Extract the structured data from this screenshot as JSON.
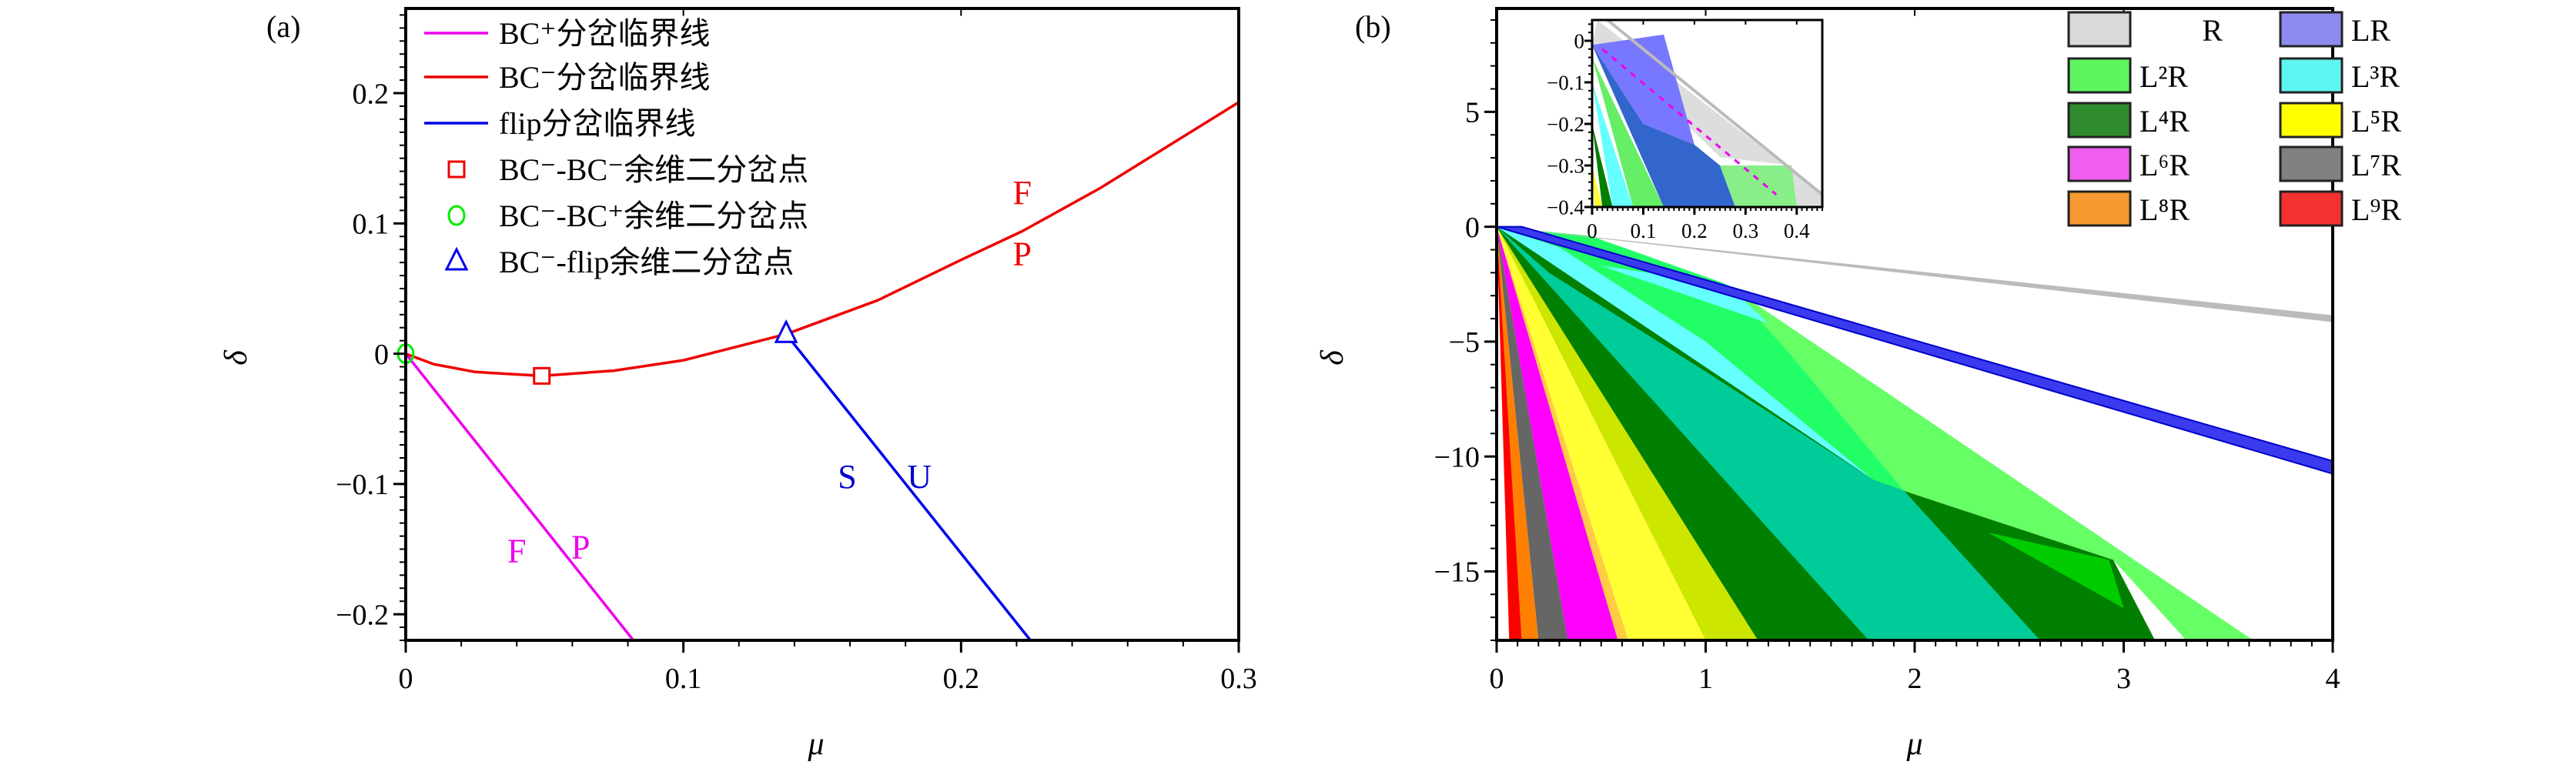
{
  "chart_data": [
    {
      "panel_label": "(a)",
      "type": "line",
      "xlabel": "μ",
      "ylabel": "δ",
      "xlim": [
        0,
        0.3
      ],
      "ylim": [
        -0.22,
        0.265
      ],
      "xticks": [
        "0",
        "0.1",
        "0.2",
        "0.3"
      ],
      "xtick_values": [
        0,
        0.1,
        0.2,
        0.3
      ],
      "yticks": [
        "0.2",
        "0.1",
        "0",
        "−0.1",
        "−0.2"
      ],
      "ytick_values": [
        0.2,
        0.1,
        0,
        -0.1,
        -0.2
      ],
      "series": [
        {
          "name": "BC⁺分岔临界线",
          "color": "#ee00ee",
          "points": [
            [
              0,
              0
            ],
            [
              0.082,
              -0.22
            ]
          ]
        },
        {
          "name": "BC⁻分岔临界线",
          "color": "#ee0000",
          "points": [
            [
              0,
              0
            ],
            [
              0.01,
              -0.008
            ],
            [
              0.025,
              -0.014
            ],
            [
              0.049,
              -0.017
            ],
            [
              0.075,
              -0.013
            ],
            [
              0.1,
              -0.005
            ],
            [
              0.137,
              0.015
            ],
            [
              0.17,
              0.041
            ],
            [
              0.2,
              0.072
            ],
            [
              0.222,
              0.094
            ],
            [
              0.25,
              0.127
            ],
            [
              0.3,
              0.193
            ]
          ]
        },
        {
          "name": "flip分岔临界线",
          "color": "#0000ee",
          "points": [
            [
              0.137,
              0.015
            ],
            [
              0.225,
              -0.22
            ]
          ]
        }
      ],
      "markers": [
        {
          "name": "BC⁻-BC⁻余维二分岔点",
          "shape": "square",
          "color": "#ee0000",
          "mu": 0.049,
          "delta": -0.017
        },
        {
          "name": "BC⁻-BC⁺余维二分岔点",
          "shape": "circle",
          "color": "#00ee00",
          "mu": 0,
          "delta": 0
        },
        {
          "name": "BC⁻-flip余维二分岔点",
          "shape": "triangle",
          "color": "#0000ee",
          "mu": 0.137,
          "delta": 0.015
        }
      ],
      "annotations": [
        {
          "text": "F",
          "mu": 0.222,
          "delta": 0.115,
          "color": "#ee0000"
        },
        {
          "text": "P",
          "mu": 0.222,
          "delta": 0.068,
          "color": "#ee0000"
        },
        {
          "text": "S",
          "mu": 0.159,
          "delta": -0.103,
          "color": "#0000cc"
        },
        {
          "text": "U",
          "mu": 0.185,
          "delta": -0.103,
          "color": "#0000cc"
        },
        {
          "text": "F",
          "mu": 0.04,
          "delta": -0.16,
          "color": "#ee00ee"
        },
        {
          "text": "P",
          "mu": 0.063,
          "delta": -0.157,
          "color": "#ee00ee"
        }
      ],
      "legend_placement": "top-left"
    },
    {
      "panel_label": "(b)",
      "type": "area",
      "xlabel": "μ",
      "ylabel": "δ",
      "xlim": [
        0,
        4
      ],
      "ylim": [
        -18,
        9.5
      ],
      "xticks": [
        "0",
        "1",
        "2",
        "3",
        "4"
      ],
      "xtick_values": [
        0,
        1,
        2,
        3,
        4
      ],
      "yticks": [
        "5",
        "0",
        "−5",
        "−10",
        "−15"
      ],
      "ytick_values": [
        5,
        0,
        -5,
        -10,
        -15
      ],
      "legend": [
        {
          "label": "R",
          "color": "#d9d9d9"
        },
        {
          "label": "LR",
          "color": "#8c8cf0"
        },
        {
          "label": "L²R",
          "color": "#5ef55e"
        },
        {
          "label": "L³R",
          "color": "#5ef5f0"
        },
        {
          "label": "L⁴R",
          "color": "#2e8b2e"
        },
        {
          "label": "L⁵R",
          "color": "#ffff00"
        },
        {
          "label": "L⁶R",
          "color": "#f05ef0"
        },
        {
          "label": "L⁷R",
          "color": "#808080"
        },
        {
          "label": "L⁸R",
          "color": "#f59a30"
        },
        {
          "label": "L⁹R",
          "color": "#f53030"
        }
      ],
      "legend_placement": "top-right",
      "regions": [
        {
          "color": "#66ff66",
          "points": [
            [
              0.35,
              -0.6
            ],
            [
              1.1,
              -2.5
            ],
            [
              3.62,
              -18
            ],
            [
              3.3,
              -18
            ],
            [
              2.95,
              -14.5
            ],
            [
              1.95,
              -11.5
            ],
            [
              1.4,
              -5.5
            ]
          ]
        },
        {
          "color": "#22ff66",
          "points": [
            [
              0,
              0
            ],
            [
              0.45,
              -0.4
            ],
            [
              1.1,
              -2.5
            ],
            [
              1.4,
              -5.5
            ],
            [
              1.95,
              -11.5
            ],
            [
              1.8,
              -11.0
            ]
          ]
        },
        {
          "color": "#66ffff",
          "points": [
            [
              0,
              0
            ],
            [
              0.3,
              -0.9
            ],
            [
              1.0,
              -5.0
            ],
            [
              1.8,
              -11.0
            ],
            [
              1.0,
              -6.3
            ],
            [
              0.25,
              -2.0
            ]
          ]
        },
        {
          "color": "#66ffff",
          "points": [
            [
              0.5,
              -1.7
            ],
            [
              1.1,
              -2.5
            ],
            [
              1.3,
              -4.2
            ]
          ]
        },
        {
          "color": "#007f00",
          "points": [
            [
              0,
              0
            ],
            [
              1.25,
              -18
            ],
            [
              3.15,
              -18
            ],
            [
              2.95,
              -14.5
            ],
            [
              1.95,
              -11.5
            ],
            [
              1.8,
              -11.0
            ]
          ]
        },
        {
          "color": "#00cc99",
          "points": [
            [
              0,
              0
            ],
            [
              0.25,
              -2.0
            ],
            [
              1.0,
              -6.3
            ],
            [
              1.8,
              -11.0
            ],
            [
              1.95,
              -11.5
            ],
            [
              2.6,
              -18
            ],
            [
              1.78,
              -18
            ]
          ]
        },
        {
          "color": "#00cc00",
          "points": [
            [
              2.35,
              -13.3
            ],
            [
              2.93,
              -14.5
            ],
            [
              3.0,
              -16.6
            ]
          ]
        },
        {
          "color": "#cce600",
          "points": [
            [
              0,
              0
            ],
            [
              1.0,
              -18
            ],
            [
              1.25,
              -18
            ]
          ]
        },
        {
          "color": "#ffff33",
          "points": [
            [
              0,
              0
            ],
            [
              0.63,
              -18
            ],
            [
              1.0,
              -18
            ]
          ]
        },
        {
          "color": "#ffcc44",
          "points": [
            [
              0,
              0
            ],
            [
              0.58,
              -18
            ],
            [
              0.63,
              -18
            ]
          ]
        },
        {
          "color": "#ff00ff",
          "points": [
            [
              0,
              0
            ],
            [
              0.34,
              -18
            ],
            [
              0.58,
              -18
            ]
          ]
        },
        {
          "color": "#666666",
          "points": [
            [
              0,
              0
            ],
            [
              0.2,
              -18
            ],
            [
              0.34,
              -18
            ]
          ]
        },
        {
          "color": "#ff8000",
          "points": [
            [
              0,
              0
            ],
            [
              0.12,
              -18
            ],
            [
              0.2,
              -18
            ]
          ]
        },
        {
          "color": "#ff0000",
          "points": [
            [
              0,
              0
            ],
            [
              0.06,
              -18
            ],
            [
              0.12,
              -18
            ]
          ]
        },
        {
          "color": "#bbbbbb",
          "points": [
            [
              0,
              0
            ],
            [
              4,
              -3.85
            ],
            [
              4,
              -4.15
            ]
          ]
        },
        {
          "color": "#3a3aee",
          "points": [
            [
              0,
              0
            ],
            [
              0.12,
              0
            ],
            [
              4,
              -10.2
            ],
            [
              4,
              -10.75
            ]
          ]
        }
      ],
      "inset": {
        "xlim": [
          0,
          0.45
        ],
        "ylim": [
          -0.4,
          0.05
        ],
        "xticks": [
          "0",
          "0.1",
          "0.2",
          "0.3",
          "0.4"
        ],
        "xtick_values": [
          0,
          0.1,
          0.2,
          0.3,
          0.4
        ],
        "yticks": [
          "0",
          "−0.1",
          "−0.2",
          "−0.3",
          "−0.4"
        ],
        "ytick_values": [
          0,
          -0.1,
          -0.2,
          -0.3,
          -0.4
        ],
        "regions": [
          {
            "color": "#dddddd",
            "points": [
              [
                0.01,
                0.05
              ],
              [
                0.45,
                -0.37
              ],
              [
                0.45,
                -0.4
              ],
              [
                0.4,
                -0.4
              ],
              [
                0.39,
                -0.3
              ],
              [
                0.25,
                -0.28
              ],
              [
                0.2,
                -0.22
              ],
              [
                0,
                -0.01
              ]
            ]
          },
          {
            "color": "#7777ff",
            "points": [
              [
                0,
                -0.01
              ],
              [
                0.14,
                0.015
              ],
              [
                0.2,
                -0.25
              ],
              [
                0.1,
                -0.2
              ]
            ]
          },
          {
            "color": "#3366cc",
            "points": [
              [
                0,
                -0.01
              ],
              [
                0.1,
                -0.2
              ],
              [
                0.2,
                -0.25
              ],
              [
                0.25,
                -0.3
              ],
              [
                0.28,
                -0.4
              ],
              [
                0.14,
                -0.4
              ]
            ]
          },
          {
            "color": "#66ee66",
            "points": [
              [
                0,
                -0.04
              ],
              [
                0.08,
                -0.4
              ],
              [
                0.14,
                -0.4
              ]
            ]
          },
          {
            "color": "#88ee88",
            "points": [
              [
                0.25,
                -0.3
              ],
              [
                0.39,
                -0.3
              ],
              [
                0.4,
                -0.4
              ],
              [
                0.28,
                -0.4
              ]
            ]
          },
          {
            "color": "#66ffff",
            "points": [
              [
                0,
                -0.1
              ],
              [
                0.04,
                -0.4
              ],
              [
                0.08,
                -0.4
              ]
            ]
          },
          {
            "color": "#007f00",
            "points": [
              [
                0,
                -0.2
              ],
              [
                0.02,
                -0.4
              ],
              [
                0.04,
                -0.4
              ]
            ]
          },
          {
            "color": "#ffff33",
            "points": [
              [
                0,
                -0.3
              ],
              [
                0.005,
                -0.4
              ],
              [
                0.02,
                -0.4
              ]
            ]
          }
        ],
        "r_line": {
          "color": "#bbbbbb",
          "points": [
            [
              0.03,
              0.05
            ],
            [
              0.45,
              -0.37
            ]
          ]
        },
        "dashed_line": {
          "color": "#ee00ee",
          "points": [
            [
              0.02,
              -0.02
            ],
            [
              0.36,
              -0.37
            ]
          ]
        }
      }
    }
  ]
}
